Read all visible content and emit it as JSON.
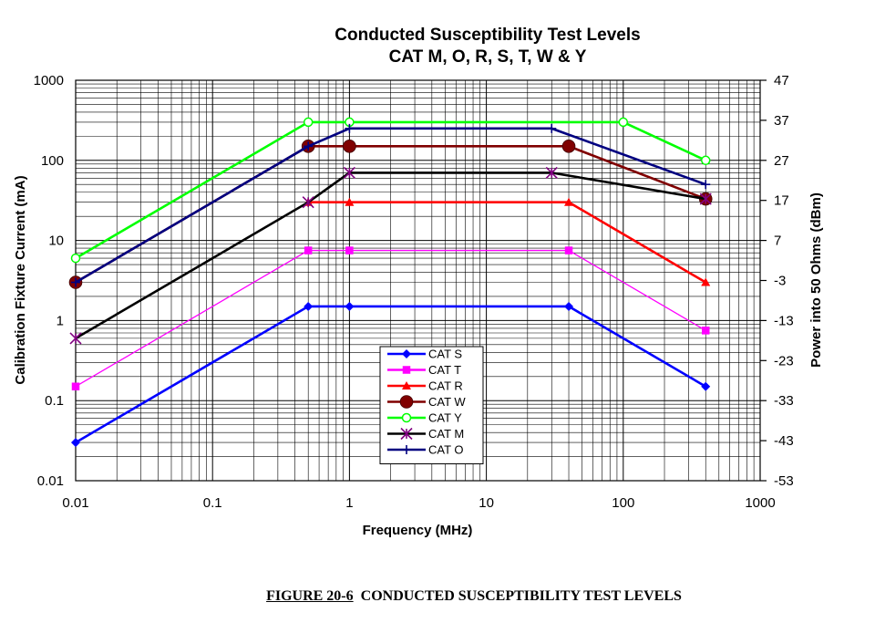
{
  "chart_data": {
    "type": "line",
    "title": "Conducted Susceptibility Test Levels",
    "subtitle": "CAT M, O, R, S, T, W & Y",
    "xlabel": "Frequency (MHz)",
    "ylabel": "Calibration Fixture Current (mA)",
    "y2label": "Power into 50 Ohms (dBm)",
    "xscale": "log",
    "yscale": "log",
    "xlim": [
      0.01,
      1000
    ],
    "ylim": [
      0.01,
      1000
    ],
    "x_ticks": [
      "0.01",
      "0.1",
      "1",
      "10",
      "100",
      "1000"
    ],
    "y_ticks": [
      "0.01",
      "0.1",
      "1",
      "10",
      "100",
      "1000"
    ],
    "y2_ticks": [
      "-53",
      "-43",
      "-33",
      "-23",
      "-13",
      "-3",
      "7",
      "17",
      "27",
      "37",
      "47"
    ],
    "grid": true,
    "legend_position": "center-bottom",
    "series": [
      {
        "name": "CAT S",
        "color": "#0000ff",
        "marker": "diamond",
        "x": [
          0.01,
          0.5,
          1,
          40,
          400
        ],
        "y": [
          0.03,
          1.5,
          1.5,
          1.5,
          0.15
        ]
      },
      {
        "name": "CAT T",
        "color": "#ff00ff",
        "marker": "square",
        "x": [
          0.01,
          0.5,
          1,
          40,
          400
        ],
        "y": [
          0.15,
          7.5,
          7.5,
          7.5,
          0.75
        ]
      },
      {
        "name": "CAT R",
        "color": "#ff0000",
        "marker": "triangle",
        "x": [
          0.5,
          1,
          40,
          400
        ],
        "y": [
          30,
          30,
          30,
          3
        ]
      },
      {
        "name": "CAT W",
        "color": "#800000",
        "marker": "circle",
        "x": [
          0.01,
          0.5,
          1,
          40,
          400
        ],
        "y": [
          3,
          150,
          150,
          150,
          33
        ]
      },
      {
        "name": "CAT Y",
        "color": "#00ff00",
        "marker": "open-circle",
        "x": [
          0.01,
          0.5,
          1,
          100,
          400
        ],
        "y": [
          6,
          300,
          300,
          300,
          100
        ]
      },
      {
        "name": "CAT M",
        "color": "#000000",
        "marker": "asterisk",
        "x": [
          0.01,
          0.5,
          1,
          30,
          400
        ],
        "y": [
          0.6,
          30,
          70,
          70,
          33
        ]
      },
      {
        "name": "CAT O",
        "color": "#000080",
        "marker": "plus",
        "x": [
          0.01,
          0.5,
          1,
          30,
          400
        ],
        "y": [
          3,
          150,
          250,
          250,
          50
        ]
      }
    ]
  },
  "caption": {
    "figure_number": "FIGURE 20-6",
    "figure_title": "CONDUCTED SUSCEPTIBILITY TEST LEVELS"
  }
}
